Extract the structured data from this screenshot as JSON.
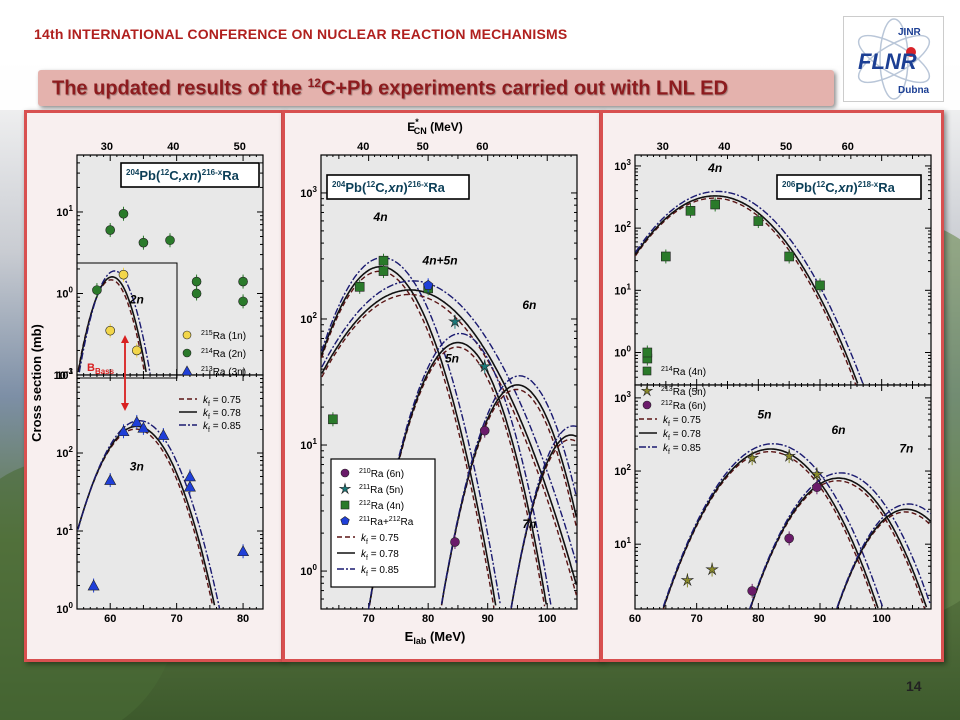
{
  "header": {
    "conference": "14th INTERNATIONAL CONFERENCE ON NUCLEAR REACTION MECHANISMS"
  },
  "logo": {
    "top_text": "JINR",
    "main_text": "FLNR",
    "bottom_text": "Dubna"
  },
  "banner": {
    "pre": "The updated results of the ",
    "sup": "12",
    "post": "C+Pb experiments carried out with LNL ED"
  },
  "page_number": "14",
  "colors": {
    "bg_sky": "#7d8fa6",
    "bg_green": "#5e7a45",
    "banner": "#e4b2ad",
    "panel_border": "#d85050",
    "panel_fill": "#f8efef",
    "plot_fill": "#e6e6e6"
  },
  "common": {
    "ylabel": "Cross section (mb)",
    "xlabel_lab": "E",
    "xlabel_lab_sub": "lab",
    "xlabel_lab_unit": " (MeV)",
    "xlabel_cn": "E",
    "xlabel_cn_sub": "CN",
    "xlabel_cn_sup": "*",
    "xlabel_cn_unit": " (MeV)",
    "bbass": "B",
    "bbass_sub": "Bass"
  },
  "chart_data": [
    {
      "type": "scatter",
      "id": "panel1_top",
      "reaction": {
        "A": "204",
        "proj_sup": "12",
        "proj": "C",
        "chan": ",xn",
        "prod_sup": "216-x",
        "prod": "Ra",
        "target": "Pb"
      },
      "xlim": [
        55,
        83
      ],
      "ylim": [
        0.1,
        50
      ],
      "yscale": "log",
      "top_axis": {
        "ticks": [
          30,
          40,
          50
        ],
        "xlim_cn": [
          25.5,
          53.5
        ]
      },
      "yticks": [
        {
          "v": 0.1,
          "mant": "10",
          "exp": "-1"
        },
        {
          "v": 1,
          "mant": "10",
          "exp": "0"
        },
        {
          "v": 10,
          "mant": "10",
          "exp": "1"
        }
      ],
      "series": [
        {
          "name": "215Ra (1n)",
          "color": "#f2d64a",
          "marker": "circle",
          "points": [
            [
              60,
              0.35
            ],
            [
              62,
              1.7
            ],
            [
              64,
              0.2
            ]
          ]
        },
        {
          "name": "214Ra (2n)",
          "color": "#2a7a2a",
          "marker": "circle",
          "points": [
            [
              58,
              1.1
            ],
            [
              60,
              6
            ],
            [
              62,
              9.5
            ],
            [
              65,
              4.2
            ],
            [
              69,
              4.5
            ],
            [
              73,
              1.4
            ],
            [
              73,
              1.0
            ],
            [
              80,
              1.4
            ],
            [
              80,
              0.8
            ]
          ]
        }
      ],
      "curve": {
        "label": "2n",
        "peak_x": 60.3,
        "peak_y": 1.6,
        "sigma": 2.2
      },
      "legend": [
        {
          "marker": "circle",
          "color": "#f2d64a",
          "pre": "215",
          "label": "Ra (1n)"
        },
        {
          "marker": "circle",
          "color": "#2a7a2a",
          "pre": "214",
          "label": "Ra (2n)"
        },
        {
          "marker": "triangle",
          "color": "#1f3fd8",
          "pre": "213",
          "label": "Ra (3n)"
        }
      ]
    },
    {
      "type": "scatter",
      "id": "panel1_bottom",
      "xlim": [
        55,
        83
      ],
      "ylim": [
        1,
        1000
      ],
      "yscale": "log",
      "xticks": [
        60,
        70,
        80
      ],
      "yticks": [
        {
          "v": 1,
          "mant": "10",
          "exp": "0"
        },
        {
          "v": 10,
          "mant": "10",
          "exp": "1"
        },
        {
          "v": 100,
          "mant": "10",
          "exp": "2"
        },
        {
          "v": 1000,
          "mant": "10",
          "exp": "3"
        }
      ],
      "series": [
        {
          "name": "213Ra (3n)",
          "color": "#1f3fd8",
          "marker": "triangle",
          "points": [
            [
              57.5,
              2
            ],
            [
              60,
              45
            ],
            [
              62,
              190
            ],
            [
              64,
              250
            ],
            [
              65,
              210
            ],
            [
              68,
              170
            ],
            [
              72,
              50
            ],
            [
              72,
              37
            ],
            [
              80,
              5.5
            ]
          ]
        }
      ],
      "curve": {
        "label": "3n",
        "peak_x": 64,
        "peak_y": 220,
        "sigma": 3.6
      },
      "legend": [
        {
          "style": "dash",
          "label": "k",
          "sub": "f",
          "value": " = 0.75"
        },
        {
          "style": "solid",
          "label": "k",
          "sub": "f",
          "value": " = 0.78"
        },
        {
          "style": "dashdot",
          "label": "k",
          "sub": "f",
          "value": " = 0.85"
        }
      ]
    },
    {
      "type": "scatter",
      "id": "panel2",
      "reaction": {
        "A": "204",
        "proj_sup": "12",
        "proj": "C",
        "chan": ",xn",
        "prod_sup": "216-x",
        "prod": "Ra",
        "target": "Pb"
      },
      "xlim": [
        62,
        105
      ],
      "ylim": [
        0.5,
        2000
      ],
      "yscale": "log",
      "xticks": [
        70,
        80,
        90,
        100
      ],
      "top_axis": {
        "ticks": [
          40,
          50,
          60
        ],
        "xlim_cn": [
          32.9,
          75.9
        ]
      },
      "yticks": [
        {
          "v": 1,
          "mant": "10",
          "exp": "0"
        },
        {
          "v": 10,
          "mant": "10",
          "exp": "1"
        },
        {
          "v": 100,
          "mant": "10",
          "exp": "2"
        },
        {
          "v": 1000,
          "mant": "10",
          "exp": "3"
        }
      ],
      "series": [
        {
          "name": "210Ra (6n)",
          "color": "#6a1b6a",
          "marker": "circle",
          "points": [
            [
              84.5,
              1.7
            ],
            [
              89.5,
              13
            ]
          ]
        },
        {
          "name": "211Ra (5n)",
          "color": "#1a7a7a",
          "marker": "star",
          "points": [
            [
              84.5,
              95
            ],
            [
              89.5,
              42
            ]
          ]
        },
        {
          "name": "212Ra (4n)",
          "color": "#2a7a2a",
          "marker": "square",
          "points": [
            [
              64,
              16
            ],
            [
              68.5,
              180
            ],
            [
              72.5,
              240
            ],
            [
              72.5,
              290
            ],
            [
              80,
              175
            ]
          ]
        },
        {
          "name": "211Ra+212Ra",
          "color": "#1f3fd8",
          "marker": "pentagon",
          "points": [
            [
              80,
              185
            ]
          ]
        }
      ],
      "curves": [
        {
          "label": "4n",
          "peak_x": 72,
          "peak_y": 260,
          "sigma": 5.5
        },
        {
          "label": "4n+5n",
          "peak_x": 77,
          "peak_y": 170,
          "sigma": 8.5
        },
        {
          "label": "5n",
          "peak_x": 85,
          "peak_y": 65,
          "sigma": 4.8
        },
        {
          "label": "6n",
          "peak_x": 95,
          "peak_y": 30,
          "sigma": 4.5
        },
        {
          "label": "7n",
          "peak_x": 104,
          "peak_y": 12,
          "sigma": 4
        }
      ],
      "curve_labels": [
        {
          "t": "4n",
          "x": 72,
          "y": 600
        },
        {
          "t": "4n+5n",
          "x": 82,
          "y": 270
        },
        {
          "t": "5n",
          "x": 84,
          "y": 45
        },
        {
          "t": "6n",
          "x": 97,
          "y": 120
        },
        {
          "t": "7n",
          "x": 97,
          "y": 2.2
        }
      ],
      "legend": [
        {
          "marker": "circle",
          "color": "#6a1b6a",
          "pre": "210",
          "label": "Ra (6n)"
        },
        {
          "marker": "star",
          "color": "#1a7a7a",
          "pre": "211",
          "label": "Ra (5n)"
        },
        {
          "marker": "square",
          "color": "#2a7a2a",
          "pre": "212",
          "label": "Ra (4n)"
        },
        {
          "marker": "pentagon",
          "color": "#1f3fd8",
          "pre": "211",
          "label": "Ra+",
          "pre2": "212",
          "label2": "Ra"
        },
        {
          "style": "dash",
          "label": "k",
          "sub": "f",
          "value": " = 0.75"
        },
        {
          "style": "solid",
          "label": "k",
          "sub": "f",
          "value": " = 0.78"
        },
        {
          "style": "dashdot",
          "label": "k",
          "sub": "f",
          "value": " = 0.85"
        }
      ]
    },
    {
      "type": "scatter",
      "id": "panel3_top",
      "reaction": {
        "A": "206",
        "proj_sup": "12",
        "proj": "C",
        "chan": ",xn",
        "prod_sup": "218-x",
        "prod": "Ra",
        "target": "Pb"
      },
      "xlim": [
        60,
        108
      ],
      "ylim": [
        0.3,
        1500
      ],
      "yscale": "log",
      "top_axis": {
        "ticks": [
          30,
          40,
          50,
          60
        ],
        "xlim_cn": [
          25.5,
          73.5
        ]
      },
      "yticks": [
        {
          "v": 1,
          "mant": "10",
          "exp": "0"
        },
        {
          "v": 10,
          "mant": "10",
          "exp": "1"
        },
        {
          "v": 100,
          "mant": "10",
          "exp": "2"
        },
        {
          "v": 1000,
          "mant": "10",
          "exp": "3"
        }
      ],
      "series": [
        {
          "name": "214Ra (4n)",
          "color": "#2a7a2a",
          "marker": "square",
          "points": [
            [
              62,
              0.8
            ],
            [
              62,
              1
            ],
            [
              65,
              35
            ],
            [
              69,
              190
            ],
            [
              73,
              240
            ],
            [
              80,
              130
            ],
            [
              85,
              35
            ],
            [
              90,
              12
            ]
          ]
        }
      ],
      "curve": {
        "label": "4n",
        "peak_x": 73,
        "peak_y": 330,
        "sigma": 6.2
      },
      "curve_labels": [
        {
          "t": "4n",
          "x": 73,
          "y": 800
        }
      ],
      "legend": [
        {
          "marker": "square",
          "color": "#2a7a2a",
          "pre": "214",
          "label": "Ra (4n)"
        }
      ]
    },
    {
      "type": "scatter",
      "id": "panel3_bottom",
      "xlim": [
        60,
        108
      ],
      "ylim": [
        1.3,
        1500
      ],
      "yscale": "log",
      "xticks": [
        60,
        70,
        80,
        90,
        100
      ],
      "yticks": [
        {
          "v": 10,
          "mant": "10",
          "exp": "1"
        },
        {
          "v": 100,
          "mant": "10",
          "exp": "2"
        },
        {
          "v": 1000,
          "mant": "10",
          "exp": "3"
        }
      ],
      "series": [
        {
          "name": "213Ra (5n)",
          "color": "#8a8a2a",
          "marker": "star",
          "points": [
            [
              68.5,
              3.2
            ],
            [
              72.5,
              4.5
            ],
            [
              79,
              150
            ],
            [
              85,
              160
            ],
            [
              89.5,
              90
            ]
          ]
        },
        {
          "name": "212Ra (6n)",
          "color": "#6a1b6a",
          "marker": "circle",
          "points": [
            [
              79,
              2.3
            ],
            [
              85,
              12
            ],
            [
              89.5,
              60
            ]
          ]
        }
      ],
      "curves": [
        {
          "label": "5n",
          "peak_x": 82,
          "peak_y": 200,
          "sigma": 5.5
        },
        {
          "label": "6n",
          "peak_x": 93,
          "peak_y": 80,
          "sigma": 5
        },
        {
          "label": "7n",
          "peak_x": 104,
          "peak_y": 30,
          "sigma": 4.5
        }
      ],
      "curve_labels": [
        {
          "t": "5n",
          "x": 81,
          "y": 520
        },
        {
          "t": "6n",
          "x": 93,
          "y": 320
        },
        {
          "t": "7n",
          "x": 104,
          "y": 180
        }
      ],
      "legend": [
        {
          "marker": "star",
          "color": "#8a8a2a",
          "pre": "213",
          "label": "Ra (5n)"
        },
        {
          "marker": "circle",
          "color": "#6a1b6a",
          "pre": "212",
          "label": "Ra (6n)"
        },
        {
          "style": "dash",
          "label": "k",
          "sub": "f",
          "value": " = 0.75"
        },
        {
          "style": "solid",
          "label": "k",
          "sub": "f",
          "value": " = 0.78"
        },
        {
          "style": "dashdot",
          "label": "k",
          "sub": "f",
          "value": " = 0.85"
        }
      ]
    }
  ]
}
